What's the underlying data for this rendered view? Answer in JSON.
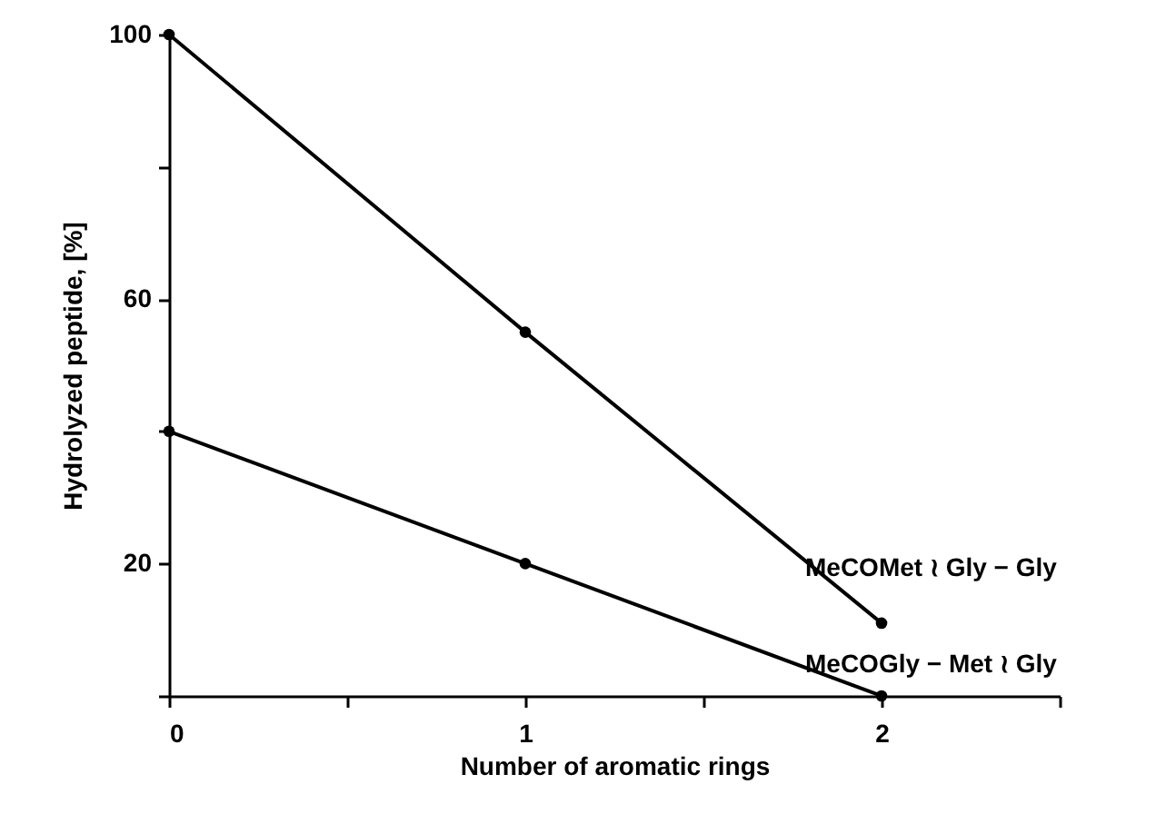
{
  "chart_data": {
    "type": "line",
    "xlabel": "Number of aromatic rings",
    "ylabel": "Hydrolyzed peptide, [%]",
    "x": [
      0,
      1,
      2
    ],
    "series": [
      {
        "name": "MeCOMet ≀ Gly − Gly",
        "color": "#000000",
        "values": [
          100,
          55,
          11
        ]
      },
      {
        "name": "MeCOGly − Met ≀ Gly",
        "color": "#000000",
        "values": [
          40,
          20,
          0
        ]
      }
    ],
    "xlim": [
      0,
      2.5
    ],
    "ylim": [
      0,
      100
    ],
    "xticks": [
      0,
      {
        "value": 0.5,
        "label": null
      },
      1,
      {
        "value": 1.5,
        "label": null
      },
      2,
      {
        "value": 2.5,
        "label": null
      }
    ],
    "yticks": [
      {
        "value": 0,
        "label": null
      },
      20,
      {
        "value": 40,
        "label": null
      },
      60,
      {
        "value": 80,
        "label": null
      },
      100
    ],
    "grid": false,
    "marker": "circle",
    "line_style": "solid"
  }
}
